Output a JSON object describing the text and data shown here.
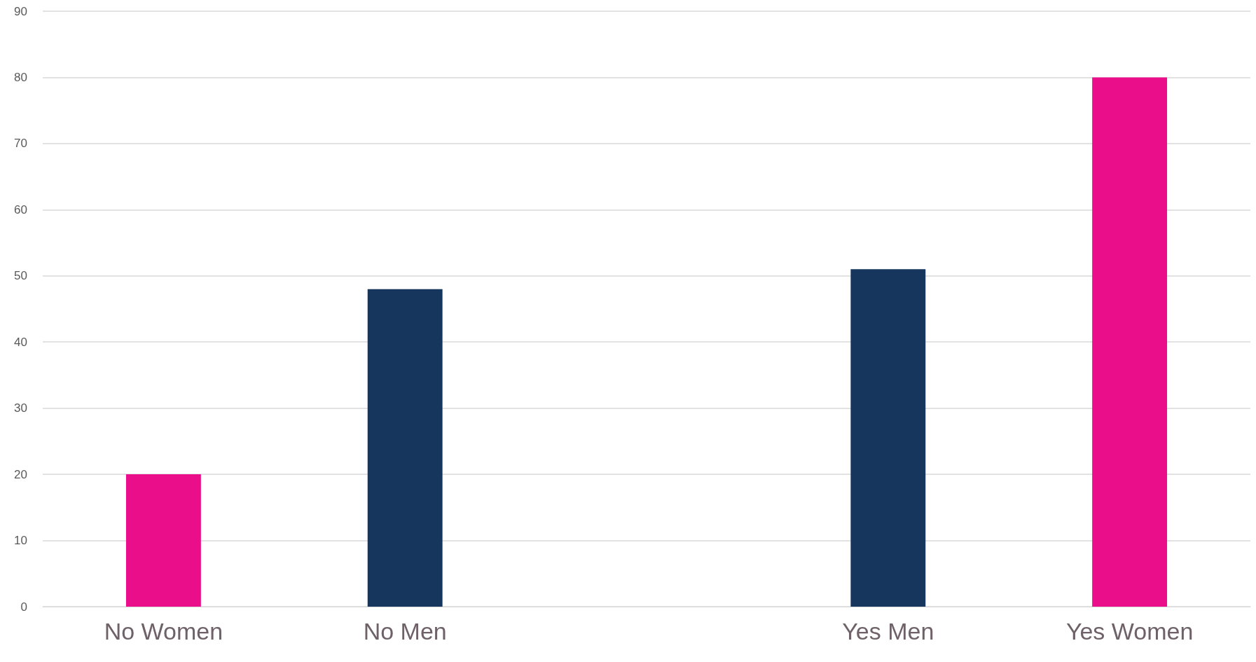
{
  "chart_data": {
    "type": "bar",
    "categories": [
      "No Women",
      "No Men",
      null,
      "Yes Men",
      "Yes Women"
    ],
    "values": [
      20,
      48,
      null,
      51,
      80
    ],
    "colors": [
      "#ea0e8b",
      "#17365d",
      null,
      "#17365d",
      "#ea0e8b"
    ],
    "ylim": [
      0,
      90
    ],
    "yticks": [
      0,
      10,
      20,
      30,
      40,
      50,
      60,
      70,
      80,
      90
    ],
    "grid": "y"
  }
}
